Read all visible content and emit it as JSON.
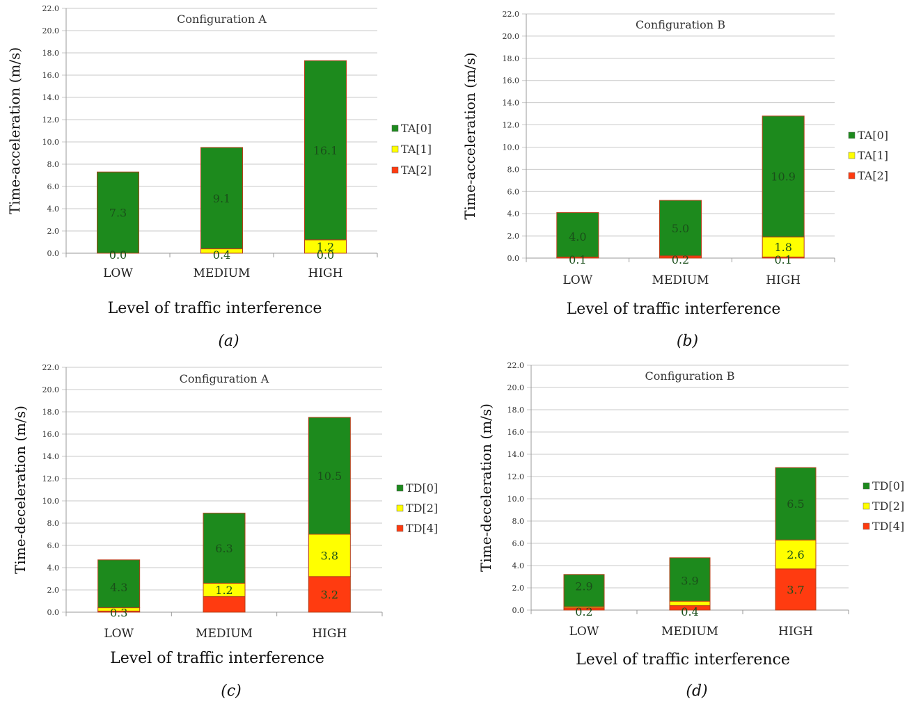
{
  "chart_data": [
    {
      "type": "bar",
      "stacked": true,
      "title": "Configuration A",
      "xlabel": "Level of traffic interference",
      "ylabel": "Time-acceleration (m/s)",
      "caption": "(a)",
      "categories": [
        "LOW",
        "MEDIUM",
        "HIGH"
      ],
      "ylim": [
        0,
        22
      ],
      "yticks": [
        "0.0",
        "2.0",
        "4.0",
        "6.0",
        "8.0",
        "10.0",
        "12.0",
        "14.0",
        "16.0",
        "18.0",
        "20.0",
        "22.0"
      ],
      "grid": true,
      "legend_position": "right",
      "series": [
        {
          "name": "TA[0]",
          "color": "#1d8a1d",
          "values": [
            7.3,
            9.1,
            16.1
          ],
          "labels": [
            "7.3",
            "9.1",
            "16.1"
          ]
        },
        {
          "name": "TA[1]",
          "color": "#ffff00",
          "values": [
            0.0,
            0.4,
            1.2
          ],
          "labels": [
            "0.0",
            "0.4",
            "1.2"
          ]
        },
        {
          "name": "TA[2]",
          "color": "#ff3b10",
          "values": [
            0.0,
            0.0,
            0.0
          ],
          "labels": [
            "",
            "",
            "0.0"
          ]
        }
      ]
    },
    {
      "type": "bar",
      "stacked": true,
      "title": "Configuration B",
      "xlabel": "Level of traffic interference",
      "ylabel": "Time-acceleration (m/s)",
      "caption": "(b)",
      "categories": [
        "LOW",
        "MEDIUM",
        "HIGH"
      ],
      "ylim": [
        0,
        22
      ],
      "yticks": [
        "0.0",
        "2.0",
        "4.0",
        "6.0",
        "8.0",
        "10.0",
        "12.0",
        "14.0",
        "16.0",
        "18.0",
        "20.0",
        "22.0"
      ],
      "grid": true,
      "legend_position": "right",
      "series": [
        {
          "name": "TA[0]",
          "color": "#1d8a1d",
          "values": [
            4.0,
            5.0,
            10.9
          ],
          "labels": [
            "4.0",
            "5.0",
            "10.9"
          ]
        },
        {
          "name": "TA[1]",
          "color": "#ffff00",
          "values": [
            0.0,
            0.0,
            1.8
          ],
          "labels": [
            "",
            "",
            "1.8"
          ]
        },
        {
          "name": "TA[2]",
          "color": "#ff3b10",
          "values": [
            0.1,
            0.2,
            0.1
          ],
          "labels": [
            "0.1",
            "0.2",
            "0.1"
          ]
        }
      ]
    },
    {
      "type": "bar",
      "stacked": true,
      "title": "Configuration A",
      "xlabel": "Level of traffic interference",
      "ylabel": "Time-deceleration (m/s)",
      "caption": "(c)",
      "categories": [
        "LOW",
        "MEDIUM",
        "HIGH"
      ],
      "ylim": [
        0,
        22
      ],
      "yticks": [
        "0.0",
        "2.0",
        "4.0",
        "6.0",
        "8.0",
        "10.0",
        "12.0",
        "14.0",
        "16.0",
        "18.0",
        "20.0",
        "22.0"
      ],
      "grid": true,
      "legend_position": "right",
      "series": [
        {
          "name": "TD[0]",
          "color": "#1d8a1d",
          "values": [
            4.3,
            6.3,
            10.5
          ],
          "labels": [
            "4.3",
            "6.3",
            "10.5"
          ]
        },
        {
          "name": "TD[2]",
          "color": "#ffff00",
          "values": [
            0.3,
            1.2,
            3.8
          ],
          "labels": [
            "0.3",
            "1.2",
            "3.8"
          ]
        },
        {
          "name": "TD[4]",
          "color": "#ff3b10",
          "values": [
            0.1,
            1.4,
            3.2
          ],
          "labels": [
            "",
            "",
            "3.2"
          ]
        }
      ]
    },
    {
      "type": "bar",
      "stacked": true,
      "title": "Configuration B",
      "xlabel": "Level of traffic interference",
      "ylabel": "Time-deceleration (m/s)",
      "caption": "(d)",
      "categories": [
        "LOW",
        "MEDIUM",
        "HIGH"
      ],
      "ylim": [
        0,
        22
      ],
      "yticks": [
        "0.0",
        "2.0",
        "4.0",
        "6.0",
        "8.0",
        "10.0",
        "12.0",
        "14.0",
        "16.0",
        "18.0",
        "20.0",
        "22.0"
      ],
      "grid": true,
      "legend_position": "right",
      "series": [
        {
          "name": "TD[0]",
          "color": "#1d8a1d",
          "values": [
            2.9,
            3.9,
            6.5
          ],
          "labels": [
            "2.9",
            "3.9",
            "6.5"
          ]
        },
        {
          "name": "TD[2]",
          "color": "#ffff00",
          "values": [
            0.1,
            0.4,
            2.6
          ],
          "labels": [
            "",
            "",
            "2.6"
          ]
        },
        {
          "name": "TD[4]",
          "color": "#ff3b10",
          "values": [
            0.2,
            0.4,
            3.7
          ],
          "labels": [
            "0.2",
            "0.4",
            "3.7"
          ]
        }
      ]
    }
  ]
}
